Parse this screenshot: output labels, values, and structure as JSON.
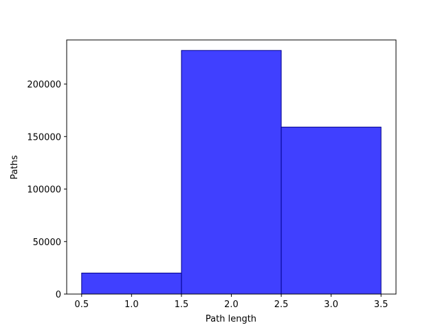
{
  "chart_data": {
    "type": "bar",
    "subtype": "histogram",
    "title": "",
    "xlabel": "Path length",
    "ylabel": "Paths",
    "bins": [
      {
        "start": 0.5,
        "end": 1.5,
        "value": 20000
      },
      {
        "start": 1.5,
        "end": 2.5,
        "value": 232000
      },
      {
        "start": 2.5,
        "end": 3.5,
        "value": 159000
      }
    ],
    "xlim": [
      0.35,
      3.65
    ],
    "ylim": [
      0,
      242000
    ],
    "x_ticks": [
      0.5,
      1.0,
      1.5,
      2.0,
      2.5,
      3.0,
      3.5
    ],
    "x_tick_labels": [
      "0.5",
      "1.0",
      "1.5",
      "2.0",
      "2.5",
      "3.0",
      "3.5"
    ],
    "y_ticks": [
      0,
      50000,
      100000,
      150000,
      200000
    ],
    "y_tick_labels": [
      "0",
      "50000",
      "100000",
      "150000",
      "200000"
    ],
    "grid": false,
    "colors": {
      "bar_fill": "#4040ff",
      "bar_edge": "#00008b",
      "axes": "#000000"
    }
  }
}
